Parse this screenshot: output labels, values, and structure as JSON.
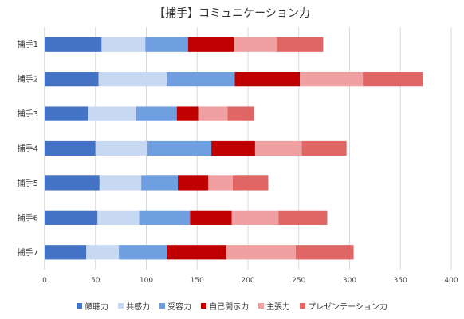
{
  "chart_data": {
    "type": "bar",
    "orientation": "horizontal",
    "stacked": true,
    "title": "【捕手】コミュニケーション力",
    "xlabel": "",
    "ylabel": "",
    "xlim": [
      0,
      400
    ],
    "xticks": [
      0,
      50,
      100,
      150,
      200,
      250,
      300,
      350,
      400
    ],
    "grid": true,
    "legend_position": "bottom",
    "categories": [
      "捕手1",
      "捕手2",
      "捕手3",
      "捕手4",
      "捕手5",
      "捕手6",
      "捕手7"
    ],
    "series": [
      {
        "name": "傾聴力",
        "color": "#4472c4",
        "values": [
          56,
          53,
          43,
          50,
          54,
          52,
          41
        ]
      },
      {
        "name": "共感力",
        "color": "#c6d8f2",
        "values": [
          43,
          67,
          47,
          51,
          41,
          41,
          32
        ]
      },
      {
        "name": "受容力",
        "color": "#6f9fe0",
        "values": [
          42,
          67,
          40,
          63,
          36,
          50,
          47
        ]
      },
      {
        "name": "自己開示力",
        "color": "#c00000",
        "values": [
          45,
          64,
          21,
          43,
          30,
          41,
          59
        ]
      },
      {
        "name": "主張力",
        "color": "#f0a0a0",
        "values": [
          42,
          62,
          29,
          46,
          24,
          46,
          68
        ]
      },
      {
        "name": "プレゼンテーション力",
        "color": "#e06666",
        "values": [
          46,
          59,
          26,
          44,
          35,
          48,
          57
        ]
      }
    ]
  }
}
